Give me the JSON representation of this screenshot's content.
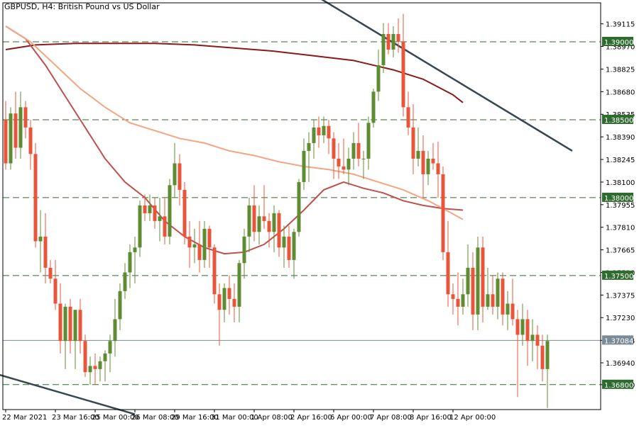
{
  "chart_data": {
    "type": "candlestick",
    "title": "GBPUSD, H4:  British Pound vs US Dollar",
    "symbol": "GBPUSD",
    "timeframe": "H4",
    "ylim": [
      1.3664,
      1.3925
    ],
    "grid": false,
    "y_ticks": [
      "1.39115",
      "1.38970",
      "1.38825",
      "1.38680",
      "1.38535",
      "1.38390",
      "1.38245",
      "1.38100",
      "1.37955",
      "1.37810",
      "1.37665",
      "1.37520",
      "1.37375",
      "1.37230",
      "1.37084",
      "1.36940",
      "1.36800"
    ],
    "x_ticks": [
      {
        "label": "22 Mar 2021",
        "index": 0
      },
      {
        "label": "23 Mar 16:00",
        "index": 10
      },
      {
        "label": "25 Mar 00:00",
        "index": 18
      },
      {
        "label": "26 Mar 08:00",
        "index": 26
      },
      {
        "label": "29 Mar 16:00",
        "index": 34
      },
      {
        "label": "31 Mar 00:00",
        "index": 42
      },
      {
        "label": "1 Apr 08:00",
        "index": 50
      },
      {
        "label": "2 Apr 16:00",
        "index": 58
      },
      {
        "label": "6 Apr 00:00",
        "index": 66
      },
      {
        "label": "7 Apr 08:00",
        "index": 74
      },
      {
        "label": "8 Apr 16:00",
        "index": 82
      },
      {
        "label": "12 Apr 00:00",
        "index": 90
      }
    ],
    "candles": [
      {
        "o": 1.385,
        "h": 1.3862,
        "l": 1.3818,
        "c": 1.3822
      },
      {
        "o": 1.3822,
        "h": 1.3858,
        "l": 1.3818,
        "c": 1.3854
      },
      {
        "o": 1.3854,
        "h": 1.3868,
        "l": 1.3825,
        "c": 1.3832
      },
      {
        "o": 1.3832,
        "h": 1.3868,
        "l": 1.3825,
        "c": 1.3858
      },
      {
        "o": 1.3858,
        "h": 1.3862,
        "l": 1.3838,
        "c": 1.3845
      },
      {
        "o": 1.3845,
        "h": 1.385,
        "l": 1.3818,
        "c": 1.3828
      },
      {
        "o": 1.3828,
        "h": 1.3835,
        "l": 1.3768,
        "c": 1.3772
      },
      {
        "o": 1.3772,
        "h": 1.3792,
        "l": 1.3752,
        "c": 1.3775
      },
      {
        "o": 1.3775,
        "h": 1.379,
        "l": 1.3745,
        "c": 1.3755
      },
      {
        "o": 1.3755,
        "h": 1.376,
        "l": 1.3745,
        "c": 1.3748
      },
      {
        "o": 1.3748,
        "h": 1.376,
        "l": 1.3728,
        "c": 1.3732
      },
      {
        "o": 1.3732,
        "h": 1.3745,
        "l": 1.37,
        "c": 1.3708
      },
      {
        "o": 1.3708,
        "h": 1.3732,
        "l": 1.369,
        "c": 1.373
      },
      {
        "o": 1.373,
        "h": 1.3735,
        "l": 1.37,
        "c": 1.3708
      },
      {
        "o": 1.3708,
        "h": 1.3728,
        "l": 1.369,
        "c": 1.3728
      },
      {
        "o": 1.3728,
        "h": 1.3735,
        "l": 1.37,
        "c": 1.3708
      },
      {
        "o": 1.3708,
        "h": 1.3712,
        "l": 1.3685,
        "c": 1.3688
      },
      {
        "o": 1.3688,
        "h": 1.3698,
        "l": 1.368,
        "c": 1.3692
      },
      {
        "o": 1.3692,
        "h": 1.37,
        "l": 1.368,
        "c": 1.369
      },
      {
        "o": 1.369,
        "h": 1.3698,
        "l": 1.3682,
        "c": 1.3695
      },
      {
        "o": 1.3695,
        "h": 1.3702,
        "l": 1.3682,
        "c": 1.37
      },
      {
        "o": 1.37,
        "h": 1.3712,
        "l": 1.3688,
        "c": 1.3708
      },
      {
        "o": 1.3708,
        "h": 1.3735,
        "l": 1.3698,
        "c": 1.3722
      },
      {
        "o": 1.3722,
        "h": 1.3745,
        "l": 1.3715,
        "c": 1.374
      },
      {
        "o": 1.374,
        "h": 1.3758,
        "l": 1.3735,
        "c": 1.3752
      },
      {
        "o": 1.3752,
        "h": 1.377,
        "l": 1.3742,
        "c": 1.3765
      },
      {
        "o": 1.3765,
        "h": 1.3775,
        "l": 1.3745,
        "c": 1.3768
      },
      {
        "o": 1.3768,
        "h": 1.3798,
        "l": 1.3762,
        "c": 1.3795
      },
      {
        "o": 1.3795,
        "h": 1.3802,
        "l": 1.3785,
        "c": 1.379
      },
      {
        "o": 1.379,
        "h": 1.3802,
        "l": 1.3785,
        "c": 1.3795
      },
      {
        "o": 1.3795,
        "h": 1.38,
        "l": 1.378,
        "c": 1.3785
      },
      {
        "o": 1.3785,
        "h": 1.38,
        "l": 1.3772,
        "c": 1.3788
      },
      {
        "o": 1.3788,
        "h": 1.38,
        "l": 1.377,
        "c": 1.3775
      },
      {
        "o": 1.3775,
        "h": 1.3812,
        "l": 1.377,
        "c": 1.3808
      },
      {
        "o": 1.3808,
        "h": 1.3835,
        "l": 1.38,
        "c": 1.3822
      },
      {
        "o": 1.3822,
        "h": 1.3828,
        "l": 1.3795,
        "c": 1.3805
      },
      {
        "o": 1.3805,
        "h": 1.381,
        "l": 1.377,
        "c": 1.3775
      },
      {
        "o": 1.3775,
        "h": 1.3785,
        "l": 1.3755,
        "c": 1.3768
      },
      {
        "o": 1.3768,
        "h": 1.378,
        "l": 1.3758,
        "c": 1.377
      },
      {
        "o": 1.377,
        "h": 1.3785,
        "l": 1.3752,
        "c": 1.376
      },
      {
        "o": 1.376,
        "h": 1.3785,
        "l": 1.3755,
        "c": 1.378
      },
      {
        "o": 1.378,
        "h": 1.3782,
        "l": 1.3755,
        "c": 1.3768
      },
      {
        "o": 1.3768,
        "h": 1.377,
        "l": 1.3732,
        "c": 1.3738
      },
      {
        "o": 1.3738,
        "h": 1.3745,
        "l": 1.3705,
        "c": 1.3728
      },
      {
        "o": 1.3728,
        "h": 1.3745,
        "l": 1.372,
        "c": 1.3742
      },
      {
        "o": 1.3742,
        "h": 1.375,
        "l": 1.3725,
        "c": 1.3735
      },
      {
        "o": 1.3735,
        "h": 1.3745,
        "l": 1.372,
        "c": 1.373
      },
      {
        "o": 1.373,
        "h": 1.376,
        "l": 1.372,
        "c": 1.3758
      },
      {
        "o": 1.3758,
        "h": 1.378,
        "l": 1.3748,
        "c": 1.3775
      },
      {
        "o": 1.3775,
        "h": 1.38,
        "l": 1.3765,
        "c": 1.3795
      },
      {
        "o": 1.3795,
        "h": 1.3808,
        "l": 1.3772,
        "c": 1.3778
      },
      {
        "o": 1.3778,
        "h": 1.3795,
        "l": 1.377,
        "c": 1.3788
      },
      {
        "o": 1.3788,
        "h": 1.3808,
        "l": 1.378,
        "c": 1.3785
      },
      {
        "o": 1.3785,
        "h": 1.379,
        "l": 1.3768,
        "c": 1.3778
      },
      {
        "o": 1.3778,
        "h": 1.3795,
        "l": 1.3765,
        "c": 1.379
      },
      {
        "o": 1.379,
        "h": 1.3792,
        "l": 1.3762,
        "c": 1.3768
      },
      {
        "o": 1.3768,
        "h": 1.3782,
        "l": 1.3755,
        "c": 1.3775
      },
      {
        "o": 1.3775,
        "h": 1.3782,
        "l": 1.3755,
        "c": 1.376
      },
      {
        "o": 1.376,
        "h": 1.378,
        "l": 1.3748,
        "c": 1.3778
      },
      {
        "o": 1.3778,
        "h": 1.3812,
        "l": 1.3775,
        "c": 1.381
      },
      {
        "o": 1.381,
        "h": 1.3838,
        "l": 1.3805,
        "c": 1.383
      },
      {
        "o": 1.383,
        "h": 1.3842,
        "l": 1.381,
        "c": 1.3835
      },
      {
        "o": 1.3835,
        "h": 1.385,
        "l": 1.3825,
        "c": 1.3845
      },
      {
        "o": 1.3845,
        "h": 1.3852,
        "l": 1.3832,
        "c": 1.384
      },
      {
        "o": 1.384,
        "h": 1.3852,
        "l": 1.3835,
        "c": 1.3846
      },
      {
        "o": 1.3846,
        "h": 1.385,
        "l": 1.3828,
        "c": 1.3838
      },
      {
        "o": 1.3838,
        "h": 1.3842,
        "l": 1.3812,
        "c": 1.3825
      },
      {
        "o": 1.3825,
        "h": 1.3835,
        "l": 1.3812,
        "c": 1.382
      },
      {
        "o": 1.382,
        "h": 1.3838,
        "l": 1.3815,
        "c": 1.3818
      },
      {
        "o": 1.3818,
        "h": 1.3832,
        "l": 1.3808,
        "c": 1.3825
      },
      {
        "o": 1.3825,
        "h": 1.3842,
        "l": 1.3818,
        "c": 1.3835
      },
      {
        "o": 1.3835,
        "h": 1.3848,
        "l": 1.382,
        "c": 1.3825
      },
      {
        "o": 1.3825,
        "h": 1.383,
        "l": 1.3812,
        "c": 1.3825
      },
      {
        "o": 1.3825,
        "h": 1.3852,
        "l": 1.3818,
        "c": 1.3848
      },
      {
        "o": 1.3848,
        "h": 1.387,
        "l": 1.3845,
        "c": 1.3868
      },
      {
        "o": 1.3868,
        "h": 1.3895,
        "l": 1.3862,
        "c": 1.3885
      },
      {
        "o": 1.3885,
        "h": 1.3912,
        "l": 1.388,
        "c": 1.3905
      },
      {
        "o": 1.3905,
        "h": 1.3912,
        "l": 1.3892,
        "c": 1.3895
      },
      {
        "o": 1.3895,
        "h": 1.391,
        "l": 1.389,
        "c": 1.3905
      },
      {
        "o": 1.3905,
        "h": 1.3915,
        "l": 1.3893,
        "c": 1.39
      },
      {
        "o": 1.39,
        "h": 1.3918,
        "l": 1.3852,
        "c": 1.3858
      },
      {
        "o": 1.3858,
        "h": 1.3868,
        "l": 1.384,
        "c": 1.3845
      },
      {
        "o": 1.3845,
        "h": 1.386,
        "l": 1.3815,
        "c": 1.3825
      },
      {
        "o": 1.3825,
        "h": 1.3845,
        "l": 1.382,
        "c": 1.383
      },
      {
        "o": 1.383,
        "h": 1.384,
        "l": 1.38,
        "c": 1.3815
      },
      {
        "o": 1.3815,
        "h": 1.383,
        "l": 1.3808,
        "c": 1.3825
      },
      {
        "o": 1.3825,
        "h": 1.3835,
        "l": 1.3818,
        "c": 1.3822
      },
      {
        "o": 1.3822,
        "h": 1.3836,
        "l": 1.38,
        "c": 1.3815
      },
      {
        "o": 1.3815,
        "h": 1.382,
        "l": 1.376,
        "c": 1.3765
      },
      {
        "o": 1.3765,
        "h": 1.3785,
        "l": 1.373,
        "c": 1.3738
      },
      {
        "o": 1.3738,
        "h": 1.3745,
        "l": 1.3725,
        "c": 1.3735
      },
      {
        "o": 1.3735,
        "h": 1.3752,
        "l": 1.3718,
        "c": 1.373
      },
      {
        "o": 1.373,
        "h": 1.3748,
        "l": 1.3725,
        "c": 1.3738
      },
      {
        "o": 1.3738,
        "h": 1.377,
        "l": 1.373,
        "c": 1.3755
      },
      {
        "o": 1.3755,
        "h": 1.3765,
        "l": 1.3715,
        "c": 1.3725
      },
      {
        "o": 1.3725,
        "h": 1.3775,
        "l": 1.3715,
        "c": 1.3768
      },
      {
        "o": 1.3768,
        "h": 1.3775,
        "l": 1.372,
        "c": 1.373
      },
      {
        "o": 1.373,
        "h": 1.3755,
        "l": 1.3728,
        "c": 1.3738
      },
      {
        "o": 1.3738,
        "h": 1.375,
        "l": 1.3725,
        "c": 1.373
      },
      {
        "o": 1.373,
        "h": 1.3752,
        "l": 1.3722,
        "c": 1.3748
      },
      {
        "o": 1.3748,
        "h": 1.3752,
        "l": 1.3718,
        "c": 1.3725
      },
      {
        "o": 1.3725,
        "h": 1.374,
        "l": 1.3715,
        "c": 1.3732
      },
      {
        "o": 1.3732,
        "h": 1.3748,
        "l": 1.3718,
        "c": 1.3722
      },
      {
        "o": 1.3722,
        "h": 1.3728,
        "l": 1.3672,
        "c": 1.3712
      },
      {
        "o": 1.3712,
        "h": 1.3732,
        "l": 1.3705,
        "c": 1.3722
      },
      {
        "o": 1.3722,
        "h": 1.3728,
        "l": 1.3692,
        "c": 1.3708
      },
      {
        "o": 1.3708,
        "h": 1.3722,
        "l": 1.3695,
        "c": 1.3712
      },
      {
        "o": 1.3712,
        "h": 1.3718,
        "l": 1.369,
        "c": 1.3705
      },
      {
        "o": 1.3705,
        "h": 1.3712,
        "l": 1.3682,
        "c": 1.369
      },
      {
        "o": 1.369,
        "h": 1.3712,
        "l": 1.3665,
        "c": 1.3708
      }
    ],
    "levels": [
      {
        "value": 1.39,
        "label": "1.39000"
      },
      {
        "value": 1.385,
        "label": "1.38500"
      },
      {
        "value": 1.38,
        "label": "1.38000"
      },
      {
        "value": 1.375,
        "label": "1.37500"
      },
      {
        "value": 1.368,
        "label": "1.36800"
      }
    ],
    "current_price": {
      "value": 1.37084,
      "label": "1.37084"
    },
    "moving_averages": [
      {
        "color": "#8b1a1a",
        "points": [
          [
            0,
            1.3895
          ],
          [
            6,
            1.3898
          ],
          [
            14,
            1.3899
          ],
          [
            22,
            1.3899
          ],
          [
            30,
            1.3899
          ],
          [
            38,
            1.3898
          ],
          [
            46,
            1.3896
          ],
          [
            54,
            1.3894
          ],
          [
            62,
            1.3891
          ],
          [
            70,
            1.3888
          ],
          [
            78,
            1.3882
          ],
          [
            84,
            1.3876
          ],
          [
            90,
            1.3866
          ],
          [
            92,
            1.3861
          ]
        ]
      },
      {
        "color": "#c0504d",
        "points": [
          [
            0,
            1.391
          ],
          [
            4,
            1.3902
          ],
          [
            8,
            1.3885
          ],
          [
            12,
            1.3865
          ],
          [
            16,
            1.3845
          ],
          [
            20,
            1.3825
          ],
          [
            24,
            1.381
          ],
          [
            28,
            1.38
          ],
          [
            32,
            1.3785
          ],
          [
            36,
            1.3775
          ],
          [
            40,
            1.3768
          ],
          [
            44,
            1.3764
          ],
          [
            48,
            1.3765
          ],
          [
            52,
            1.377
          ],
          [
            56,
            1.378
          ],
          [
            60,
            1.3792
          ],
          [
            64,
            1.3805
          ],
          [
            68,
            1.381
          ],
          [
            72,
            1.3806
          ],
          [
            76,
            1.3803
          ],
          [
            80,
            1.3798
          ],
          [
            84,
            1.3795
          ],
          [
            88,
            1.3793
          ],
          [
            92,
            1.3792
          ]
        ]
      },
      {
        "color": "#f4a582",
        "points": [
          [
            0,
            1.391
          ],
          [
            5,
            1.39
          ],
          [
            10,
            1.3885
          ],
          [
            15,
            1.387
          ],
          [
            20,
            1.3858
          ],
          [
            25,
            1.3848
          ],
          [
            30,
            1.3843
          ],
          [
            35,
            1.3838
          ],
          [
            40,
            1.3835
          ],
          [
            45,
            1.383
          ],
          [
            50,
            1.3827
          ],
          [
            55,
            1.3823
          ],
          [
            60,
            1.382
          ],
          [
            65,
            1.3818
          ],
          [
            70,
            1.3815
          ],
          [
            75,
            1.381
          ],
          [
            80,
            1.3805
          ],
          [
            85,
            1.3798
          ],
          [
            88,
            1.3793
          ],
          [
            92,
            1.3786
          ]
        ]
      }
    ],
    "trendlines": [
      {
        "color": "#37474f",
        "from": [
          -2,
          1.3687
        ],
        "to": [
          26,
          1.3661
        ]
      },
      {
        "color": "#37474f",
        "from": [
          58,
          1.3938
        ],
        "to": [
          114,
          1.383
        ]
      }
    ],
    "colors": {
      "bull": "#5f8c32",
      "bear": "#e8553a",
      "level": "#2e6b2e",
      "current": "#7a8a96",
      "axis": "#000000"
    }
  }
}
